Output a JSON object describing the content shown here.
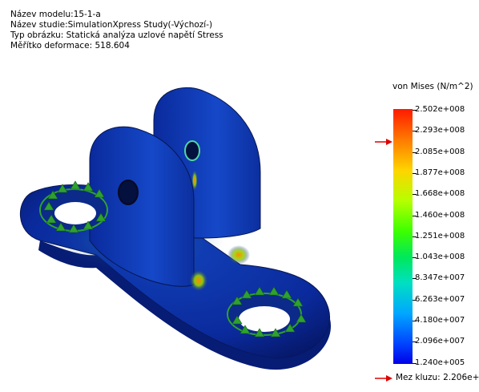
{
  "info": {
    "model_name": "Název modelu:15-1-a",
    "study_name": "Název studie:SimulationXpress Study(-Výchozí-)",
    "plot_type": "Typ obrázku: Statická analýza uzlové napětí Stress",
    "deformation_scale": "Měřítko deformace: 518.604"
  },
  "legend": {
    "title": "von Mises (N/m^2)",
    "ticks": [
      "2.502e+008",
      "2.293e+008",
      "2.085e+008",
      "1.877e+008",
      "1.668e+008",
      "1.460e+008",
      "1.251e+008",
      "1.043e+008",
      "8.347e+007",
      "6.263e+007",
      "4.180e+007",
      "2.096e+007",
      "1.240e+005"
    ],
    "yield_label": "Mez kluzu: 2.206e+",
    "arrow_color": "#e00000"
  },
  "colors": {
    "part_blue": "#0a2a9c",
    "fixture_green": "#2fa12f"
  }
}
